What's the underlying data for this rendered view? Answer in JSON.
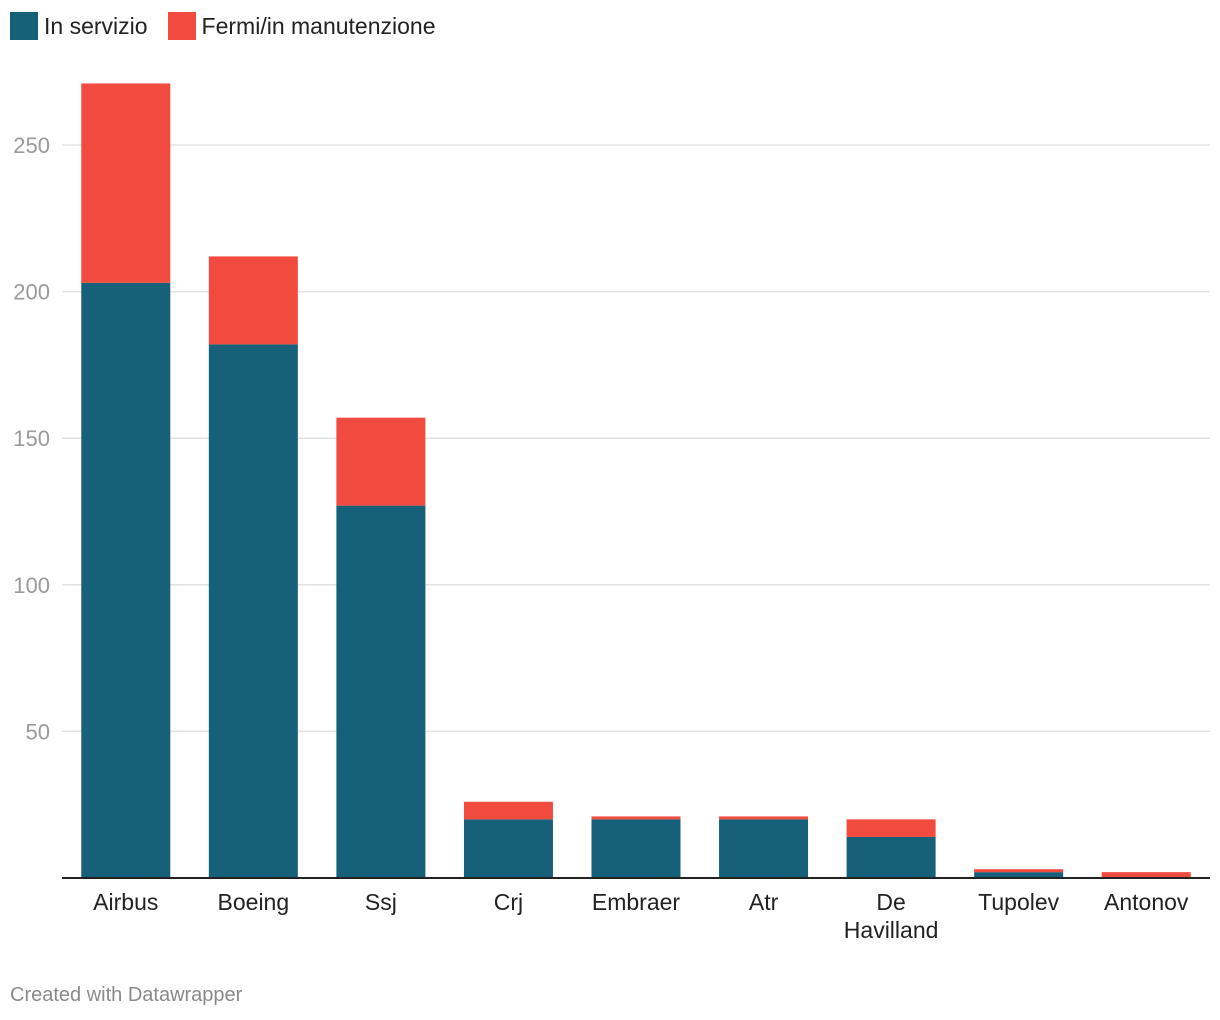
{
  "chart_data": {
    "type": "bar",
    "stacked": true,
    "title": "",
    "xlabel": "",
    "ylabel": "",
    "ylim": [
      0,
      275
    ],
    "yticks": [
      50,
      100,
      150,
      200,
      250
    ],
    "grid": true,
    "legend_position": "top-left",
    "categories": [
      "Airbus",
      "Boeing",
      "Ssj",
      "Crj",
      "Embraer",
      "Atr",
      "De Havilland",
      "Tupolev",
      "Antonov"
    ],
    "category_label_lines": [
      [
        "Airbus"
      ],
      [
        "Boeing"
      ],
      [
        "Ssj"
      ],
      [
        "Crj"
      ],
      [
        "Embraer"
      ],
      [
        "Atr"
      ],
      [
        "De",
        "Havilland"
      ],
      [
        "Tupolev"
      ],
      [
        "Antonov"
      ]
    ],
    "series": [
      {
        "name": "In servizio",
        "color": "#17607a",
        "values": [
          203,
          182,
          127,
          20,
          20,
          20,
          14,
          2,
          0
        ]
      },
      {
        "name": "Fermi/in manutenzione",
        "color": "#f04b3e",
        "values": [
          68,
          30,
          30,
          6,
          1,
          1,
          6,
          1,
          2
        ]
      }
    ]
  },
  "legend": {
    "items": [
      {
        "label": "In servizio",
        "color": "#17607a"
      },
      {
        "label": "Fermi/in manutenzione",
        "color": "#f04b3e"
      }
    ]
  },
  "footer": {
    "credit": "Created with Datawrapper"
  }
}
